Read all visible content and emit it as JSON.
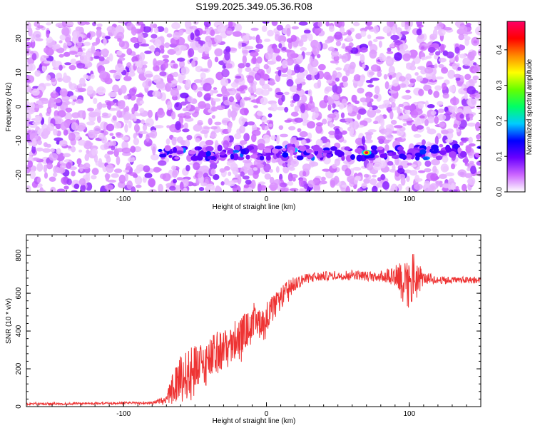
{
  "title": "S199.2025.349.05.36.R08",
  "chart_data": [
    {
      "type": "heatmap",
      "title": "S199.2025.349.05.36.R08",
      "xlabel": "Height of straight line (km)",
      "ylabel": "Frequency (Hz)",
      "xlim": [
        -168,
        150
      ],
      "ylim": [
        -25,
        25
      ],
      "x_ticks": [
        -100,
        0,
        100
      ],
      "y_ticks": [
        -20,
        -10,
        0,
        10,
        20
      ],
      "colorbar": {
        "label": "Normalized spectral amplitude",
        "range": [
          0.0,
          0.48
        ],
        "ticks": [
          0.0,
          0.1,
          0.2,
          0.3,
          0.4
        ],
        "colors": [
          "#ffffff",
          "#cc66ff",
          "#6a00ff",
          "#0000ff",
          "#00ccff",
          "#00ff66",
          "#66ff00",
          "#ffff00",
          "#ff8800",
          "#ff0000",
          "#ff0066"
        ]
      },
      "background_amplitude": [
        0.0,
        0.06
      ],
      "band": {
        "frequency_hz": -13.5,
        "x_start_km": -75,
        "x_end_km": 150,
        "peak_x_km": 70,
        "peak_amplitude": 0.46
      }
    },
    {
      "type": "line",
      "xlabel": "Height of straight line (km)",
      "ylabel": "SNR (10 * v/v)",
      "xlim": [
        -168,
        150
      ],
      "ylim": [
        0,
        910
      ],
      "x_ticks": [
        -100,
        0,
        100
      ],
      "y_ticks": [
        0,
        200,
        400,
        600,
        800
      ],
      "color": "#ee3333",
      "x": [
        -168,
        -140,
        -110,
        -80,
        -70,
        -65,
        -60,
        -55,
        -50,
        -45,
        -40,
        -35,
        -30,
        -25,
        -20,
        -15,
        -10,
        -5,
        0,
        5,
        10,
        15,
        20,
        25,
        30,
        40,
        50,
        60,
        70,
        80,
        90,
        95,
        100,
        103,
        105,
        110,
        120,
        130,
        140,
        150
      ],
      "y": [
        15,
        15,
        18,
        20,
        40,
        100,
        150,
        170,
        200,
        220,
        240,
        280,
        300,
        320,
        360,
        400,
        420,
        450,
        480,
        520,
        570,
        620,
        650,
        670,
        680,
        690,
        695,
        700,
        690,
        690,
        700,
        680,
        680,
        690,
        680,
        680,
        670,
        670,
        670,
        670
      ],
      "noise": [
        6,
        6,
        6,
        6,
        20,
        90,
        130,
        130,
        130,
        130,
        120,
        120,
        110,
        110,
        100,
        100,
        90,
        90,
        80,
        70,
        60,
        50,
        40,
        30,
        25,
        25,
        25,
        25,
        25,
        30,
        60,
        130,
        180,
        160,
        120,
        30,
        20,
        18,
        18,
        18
      ]
    }
  ]
}
